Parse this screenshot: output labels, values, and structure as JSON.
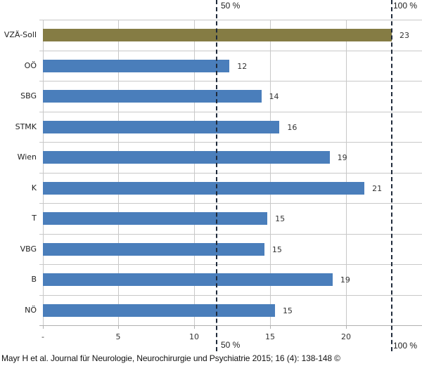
{
  "chart_data": {
    "type": "bar",
    "orientation": "horizontal",
    "title": "",
    "xlabel": "",
    "ylabel": "",
    "categories": [
      "VZÄ-Soll",
      "OÖ",
      "SBG",
      "STMK",
      "Wien",
      "K",
      "T",
      "VBG",
      "B",
      "NÖ"
    ],
    "values": [
      23,
      12,
      14,
      16,
      19,
      21,
      15,
      15,
      19,
      15
    ],
    "value_labels": [
      "23",
      "12",
      "14",
      "16",
      "19",
      "21",
      "15",
      "15",
      "19",
      "15"
    ],
    "bar_lengths_estimated": [
      23.0,
      12.3,
      14.4,
      15.6,
      18.9,
      21.2,
      14.8,
      14.6,
      19.1,
      15.3
    ],
    "bar_colors": [
      "#857c44",
      "#4a7ebb",
      "#4a7ebb",
      "#4a7ebb",
      "#4a7ebb",
      "#4a7ebb",
      "#4a7ebb",
      "#4a7ebb",
      "#4a7ebb",
      "#4a7ebb"
    ],
    "xlim": [
      0,
      23
    ],
    "x_ticks": [
      "-",
      "5",
      "10",
      "15",
      "20"
    ],
    "x_tick_values": [
      0,
      5,
      10,
      15,
      20
    ],
    "grid": true,
    "legend": null,
    "reference_lines": [
      {
        "label": "50 %",
        "value": 11.5,
        "style": "dashed"
      },
      {
        "label": "100 %",
        "value": 23,
        "style": "dashed"
      }
    ]
  },
  "ref_labels": {
    "half_top": "50 %",
    "half_bottom": "50 %",
    "full_top": "100 %",
    "full_bottom": "100 %"
  },
  "citation": "Mayr H et al. Journal für Neurologie, Neurochirurgie und Psychiatrie 2015; 16 (4): 138-148 ©"
}
